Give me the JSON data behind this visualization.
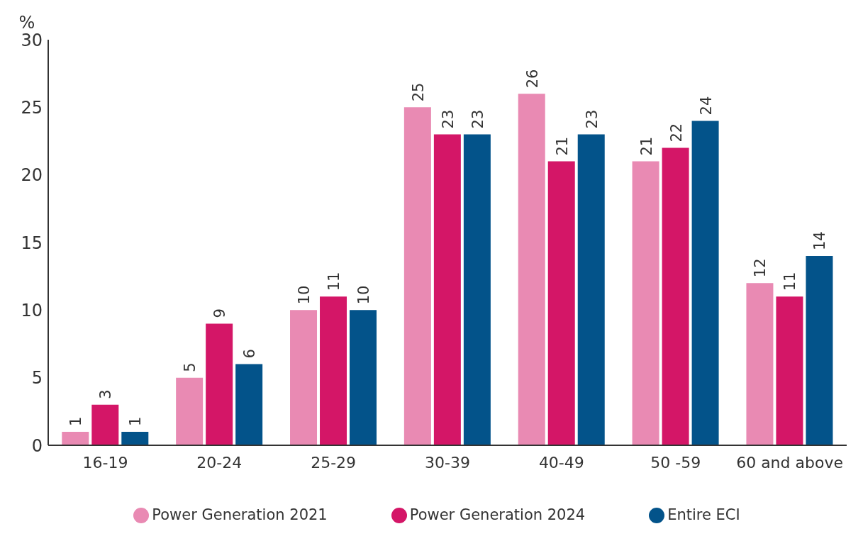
{
  "chart_data": {
    "type": "bar",
    "ylabel": "%",
    "categories": [
      "16-19",
      "20-24",
      "25-29",
      "30-39",
      "40-49",
      "50 -59",
      "60 and above"
    ],
    "series": [
      {
        "name": "Power Generation 2021",
        "color": "#e98ab3",
        "values": [
          1,
          5,
          10,
          25,
          26,
          21,
          12
        ]
      },
      {
        "name": "Power Generation 2024",
        "color": "#d41667",
        "values": [
          3,
          9,
          11,
          23,
          21,
          22,
          11
        ]
      },
      {
        "name": "Entire ECI",
        "color": "#03538a",
        "values": [
          1,
          6,
          10,
          23,
          23,
          24,
          14
        ]
      }
    ],
    "ylim": [
      0,
      30
    ],
    "yticks": [
      0,
      5,
      10,
      15,
      20,
      25,
      30
    ],
    "grid": false,
    "legend": "bottom",
    "data_labels": true
  }
}
